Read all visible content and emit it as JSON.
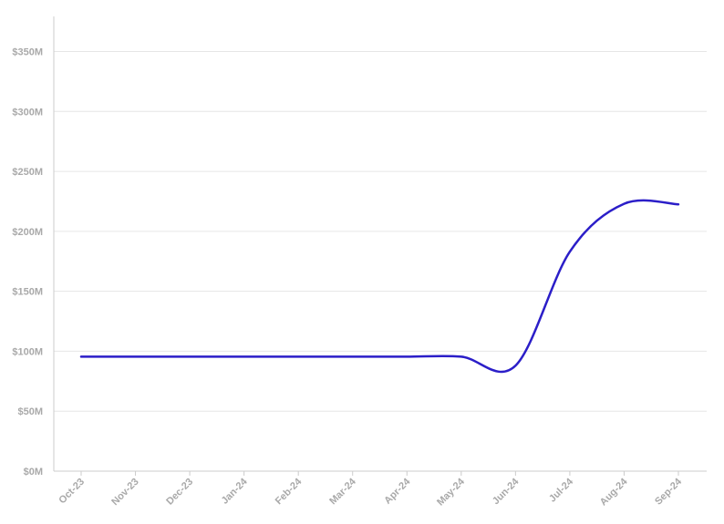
{
  "chart_data": {
    "type": "line",
    "title": "",
    "xlabel": "",
    "ylabel": "",
    "categories": [
      "Oct-23",
      "Nov-23",
      "Dec-23",
      "Jan-24",
      "Feb-24",
      "Mar-24",
      "Apr-24",
      "May-24",
      "Jun-24",
      "Jul-24",
      "Aug-24",
      "Sep-24"
    ],
    "series": [
      {
        "values": [
          95.5,
          95.5,
          95.5,
          95.5,
          95.5,
          95.5,
          95.5,
          95.5,
          88,
          183,
          223,
          222.5
        ]
      }
    ],
    "y_ticks": [
      "$0M",
      "$50M",
      "$100M",
      "$150M",
      "$200M",
      "$250M",
      "$300M",
      "$350M"
    ],
    "y_tick_values": [
      0,
      50,
      100,
      150,
      200,
      250,
      300,
      350
    ],
    "ylim": [
      0,
      350
    ],
    "grid": true,
    "legend": "none",
    "colors": {
      "line": "#2b1ec8",
      "grid": "#e6e6e6",
      "axis": "#cccccc",
      "tick_text": "#a9a9a9"
    }
  }
}
